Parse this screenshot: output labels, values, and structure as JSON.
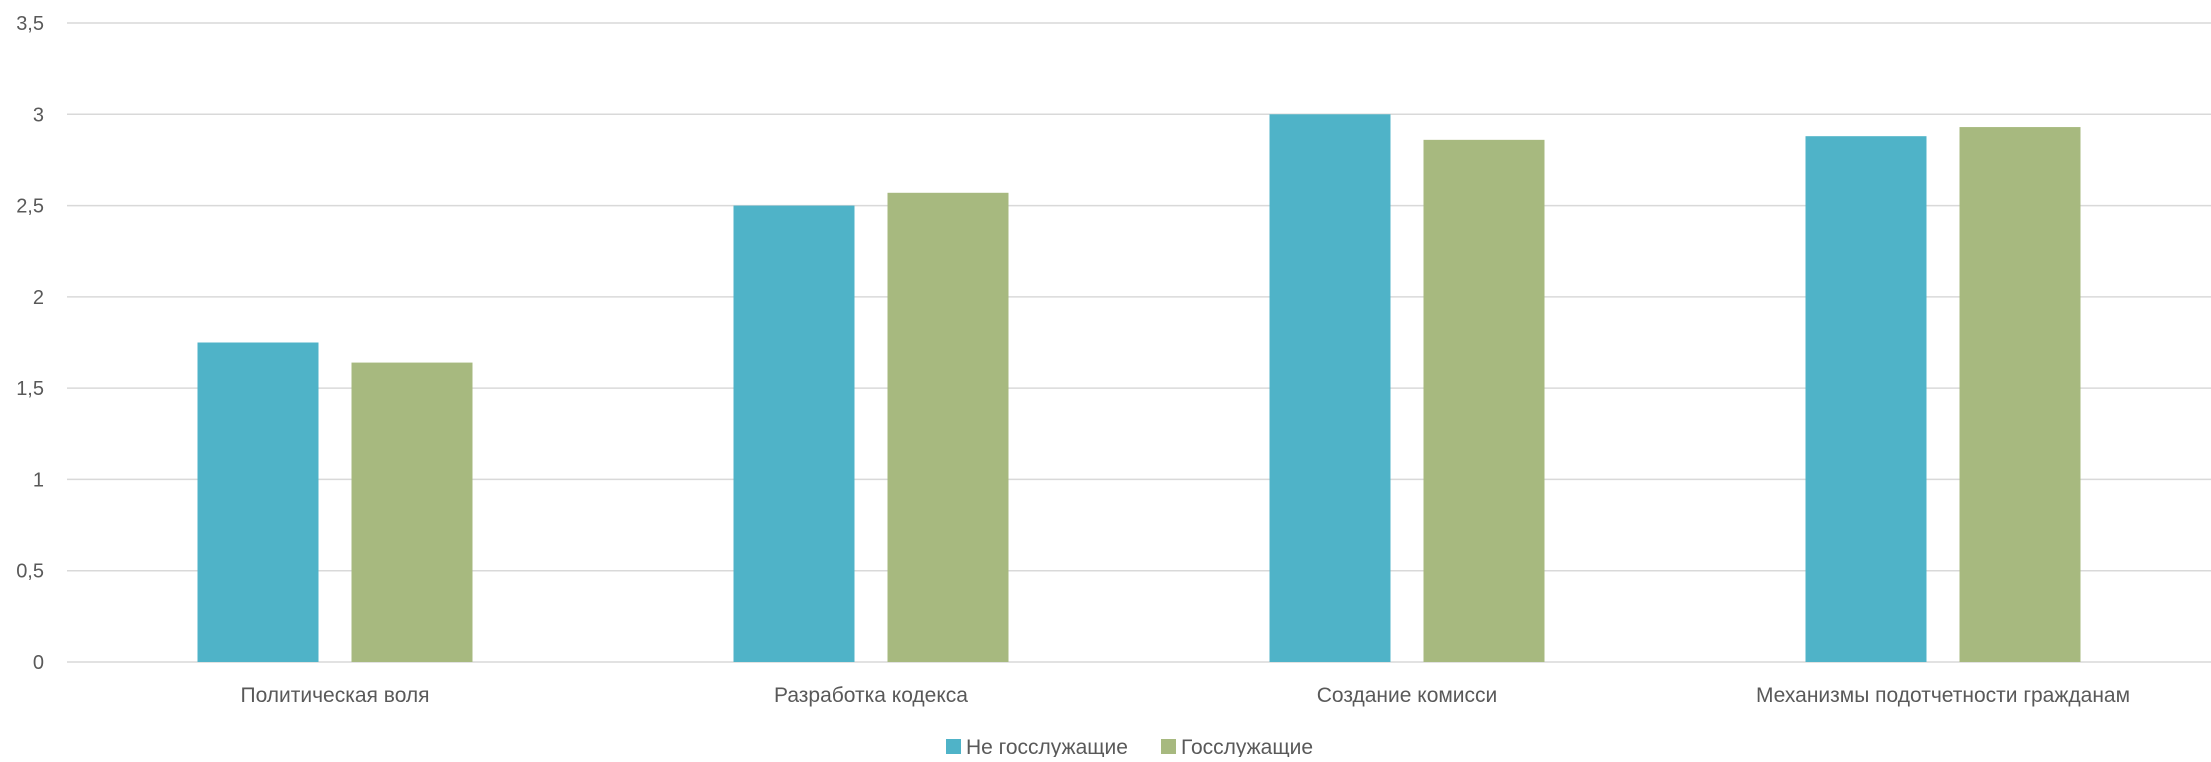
{
  "chart_data": {
    "type": "bar",
    "categories": [
      "Политическая воля",
      "Разработка кодекса",
      "Создание комисси",
      "Механизмы подотчетности гражданам"
    ],
    "series": [
      {
        "name": "Не госслужащие",
        "values": [
          1.75,
          2.5,
          3.0,
          2.88
        ],
        "color": "#4FB3C8"
      },
      {
        "name": "Госслужащие",
        "values": [
          1.64,
          2.57,
          2.86,
          2.93
        ],
        "color": "#A7B97F"
      }
    ],
    "y_ticks": [
      "0",
      "0,5",
      "1",
      "1,5",
      "2",
      "2,5",
      "3",
      "3,5"
    ],
    "ylim": [
      0,
      3.5
    ],
    "grid": true,
    "legend_position": "bottom",
    "gridline_color": "#D9D9D9"
  }
}
